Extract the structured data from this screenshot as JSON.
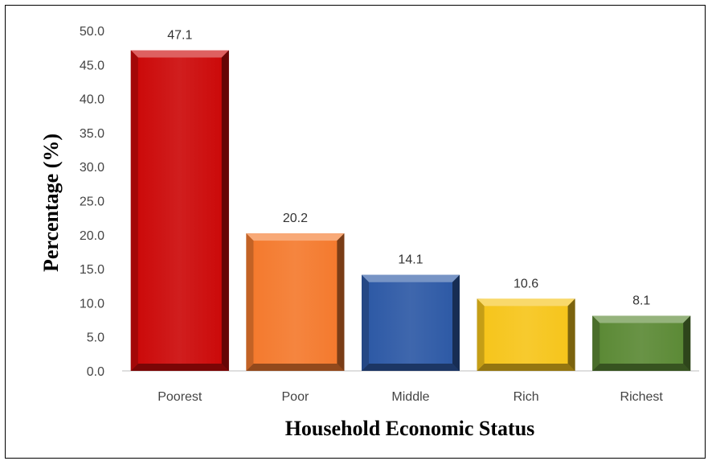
{
  "chart_data": {
    "type": "bar",
    "categories": [
      "Poorest",
      "Poor",
      "Middle",
      "Rich",
      "Richest"
    ],
    "values": [
      47.1,
      20.2,
      14.1,
      10.6,
      8.1
    ],
    "data_labels": [
      "47.1",
      "20.2",
      "14.1",
      "10.6",
      "8.1"
    ],
    "xlabel": "Household Economic Status",
    "ylabel": "Percentage (%)",
    "ylim": [
      0,
      50
    ],
    "yticks": [
      "0.0",
      "5.0",
      "10.0",
      "15.0",
      "20.0",
      "25.0",
      "30.0",
      "35.0",
      "40.0",
      "45.0",
      "50.0"
    ],
    "grid": false,
    "legend": "none",
    "colors": [
      "#cc0a0a",
      "#f47a2e",
      "#2e5aa6",
      "#f6c51c",
      "#5c8a36"
    ]
  }
}
